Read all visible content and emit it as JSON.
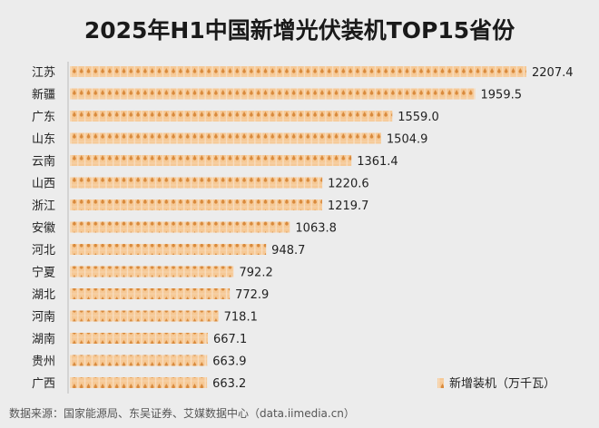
{
  "chart_data": {
    "type": "bar",
    "orientation": "horizontal",
    "title": "2025年H1中国新增光伏装机TOP15省份",
    "categories": [
      "江苏",
      "新疆",
      "广东",
      "山东",
      "云南",
      "山西",
      "浙江",
      "安徽",
      "河北",
      "宁夏",
      "湖北",
      "河南",
      "湖南",
      "贵州",
      "广西"
    ],
    "series": [
      {
        "name": "新增装机（万千瓦）",
        "values": [
          2207.4,
          1959.5,
          1559.0,
          1504.9,
          1361.4,
          1220.6,
          1219.7,
          1063.8,
          948.7,
          792.2,
          772.9,
          718.1,
          667.1,
          663.9,
          663.2
        ]
      }
    ],
    "legend_position": "bottom-right",
    "grid": false,
    "bar_style": "pictograph tiles",
    "colors": {
      "tile": "#f6c996",
      "tile_icon": "#d98a3c",
      "text": "#222222"
    }
  },
  "source": "数据来源：国家能源局、东吴证券、艾媒数据中心（data.iimedia.cn）"
}
